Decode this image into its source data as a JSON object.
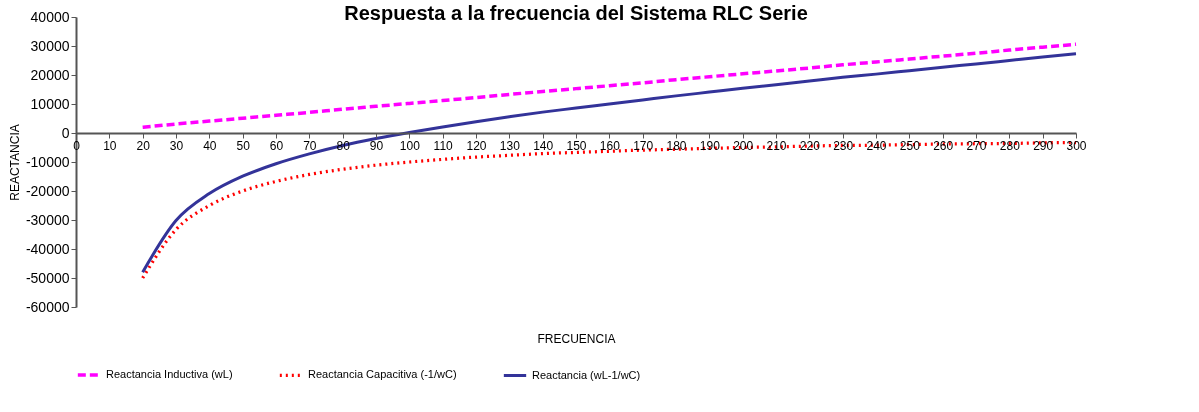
{
  "chart_data": {
    "type": "line",
    "title": "Respuesta a la frecuencia del Sistema RLC Serie",
    "xlabel": "FRECUENCIA",
    "ylabel": "REACTANCIA",
    "x": [
      20,
      30,
      40,
      50,
      60,
      70,
      80,
      90,
      100,
      110,
      120,
      130,
      140,
      150,
      160,
      170,
      180,
      190,
      200,
      210,
      220,
      230,
      240,
      250,
      260,
      270,
      280,
      290,
      300
    ],
    "series": [
      {
        "name": "Reactancia Inductiva (wL)",
        "color": "#ff00ff",
        "line_style": "dashed",
        "values": [
          2000,
          3100,
          4100,
          5100,
          6100,
          7100,
          8200,
          9200,
          10200,
          11200,
          12200,
          13300,
          14300,
          15300,
          16300,
          17300,
          18400,
          19400,
          20400,
          21400,
          22400,
          23500,
          24500,
          25500,
          26500,
          27500,
          28600,
          29600,
          30600
        ]
      },
      {
        "name": "Reactancia Capacitiva (-1/wC)",
        "color": "#ff0000",
        "line_style": "dotted",
        "values": [
          -50000,
          -33300,
          -25000,
          -20000,
          -16700,
          -14300,
          -12500,
          -11100,
          -10000,
          -9100,
          -8300,
          -7700,
          -7100,
          -6700,
          -6300,
          -5900,
          -5600,
          -5300,
          -5000,
          -4800,
          -4500,
          -4300,
          -4200,
          -4000,
          -3800,
          -3700,
          -3600,
          -3400,
          -3300
        ]
      },
      {
        "name": "Reactancia (wL-1/wC)",
        "color": "#333399",
        "line_style": "solid",
        "values": [
          -48000,
          -30200,
          -20900,
          -14900,
          -10600,
          -7200,
          -4300,
          -1900,
          200,
          2100,
          3900,
          5600,
          7200,
          8600,
          10000,
          11400,
          12800,
          14100,
          15400,
          16600,
          17900,
          19200,
          20300,
          21500,
          22700,
          23800,
          25000,
          26200,
          27300
        ]
      }
    ],
    "xlim": [
      0,
      300
    ],
    "xticks": [
      0,
      10,
      20,
      30,
      40,
      50,
      60,
      70,
      80,
      90,
      100,
      110,
      120,
      130,
      140,
      150,
      160,
      170,
      180,
      190,
      200,
      210,
      220,
      230,
      240,
      250,
      260,
      270,
      280,
      290,
      300
    ],
    "ylim": [
      -60000,
      40000
    ],
    "yticks": [
      -60000,
      -50000,
      -40000,
      -30000,
      -20000,
      -10000,
      0,
      10000,
      20000,
      30000,
      40000
    ],
    "grid": false,
    "legend": "bottom",
    "marker": "none"
  }
}
